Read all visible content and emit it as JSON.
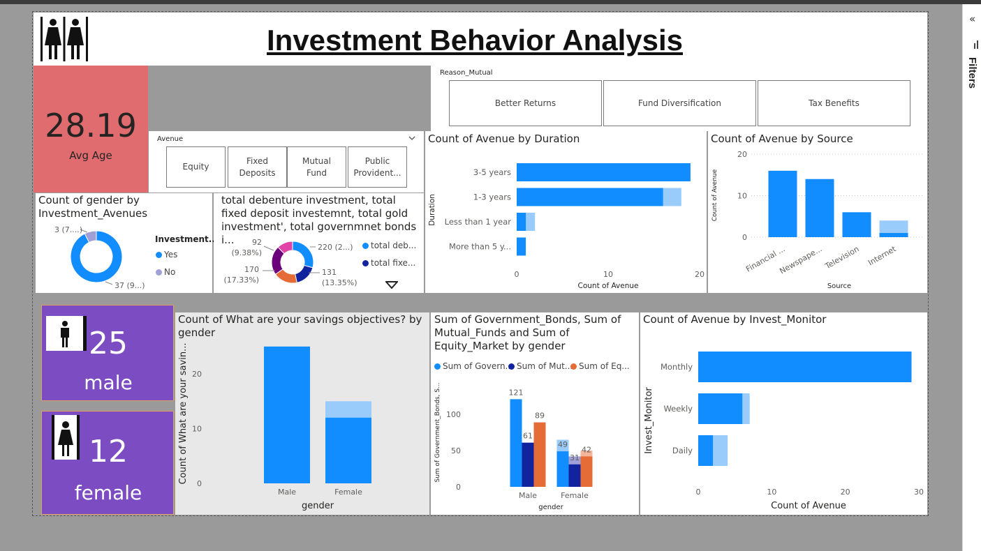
{
  "header": {
    "title": "Investment Behavior Analysis"
  },
  "side_panel": {
    "filters_label": "Filters",
    "collapse_glyph": "«"
  },
  "kpi_age": {
    "value": "28.19",
    "label": "Avg Age",
    "color": "#e06c70"
  },
  "reason_slicer": {
    "label": "Reason_Mutual",
    "options": [
      "Better Returns",
      "Fund Diversification",
      "Tax Benefits"
    ]
  },
  "avenue_slicer": {
    "label": "Avenue",
    "options": [
      "Equity",
      "Fixed\nDeposits",
      "Mutual\nFund",
      "Public\nProvident..."
    ]
  },
  "gender_cards": {
    "male": {
      "count": "25",
      "label": "male"
    },
    "female": {
      "count": "12",
      "label": "female"
    },
    "color": "#7b4cc2"
  },
  "colors": {
    "primary": "#118dff",
    "primary_light": "#99ccfb",
    "navy": "#12239e",
    "orange": "#e66c37",
    "purple_dark": "#6b007b",
    "magenta": "#e044a7",
    "lavender": "#a0a0d8"
  },
  "chart_data": [
    {
      "id": "gender_by_avenues",
      "type": "pie",
      "title": "Count of gender by Investment_Avenues",
      "legend_title": "Investment...",
      "slices": [
        {
          "name": "Yes",
          "value": 37,
          "label": "37 (9...)"
        },
        {
          "name": "No",
          "value": 3,
          "label": "3 (7....)"
        }
      ]
    },
    {
      "id": "investment_totals",
      "type": "pie",
      "title": "total debenture investment, total fixed deposit investemnt, total gold investment', total governmnet bonds i...",
      "legend": [
        "total deb...",
        "total fixe..."
      ],
      "slices": [
        {
          "name": "total deb...",
          "value": 220,
          "label": "220 (2...)"
        },
        {
          "name": "total fixe...",
          "value": 131,
          "label": "131\n(13.35%)"
        },
        {
          "name": "",
          "value": 170,
          "label": "170\n(17.33%)"
        },
        {
          "name": "",
          "value": 92,
          "label": "92\n(9.38%)"
        }
      ]
    },
    {
      "id": "avenue_by_duration",
      "type": "bar",
      "orientation": "horizontal",
      "title": "Count of Avenue by Duration",
      "xlabel": "Count of Avenue",
      "ylabel": "Duration",
      "categories": [
        "3-5 years",
        "1-3 years",
        "Less than 1 year",
        "More than 5 y..."
      ],
      "values": [
        19,
        16,
        1,
        1
      ],
      "highlight_totals": [
        19,
        18,
        2,
        1
      ],
      "x_ticks": [
        0,
        10,
        20
      ],
      "xlim": [
        0,
        20
      ]
    },
    {
      "id": "avenue_by_source",
      "type": "bar",
      "title": "Count of Avenue by Source",
      "xlabel": "Source",
      "ylabel": "Count of Avenue",
      "categories": [
        "Financial ...",
        "Newspape...",
        "Television",
        "Internet"
      ],
      "values": [
        16,
        14,
        6,
        1
      ],
      "highlight_totals": [
        16,
        14,
        6,
        4
      ],
      "y_ticks": [
        0,
        10,
        20
      ],
      "ylim": [
        0,
        20
      ]
    },
    {
      "id": "savings_by_gender",
      "type": "bar",
      "title": "Count of What are your savings objectives? by gender",
      "xlabel": "gender",
      "ylabel": "Count of What are your savin...",
      "categories": [
        "Male",
        "Female"
      ],
      "values": [
        25,
        12
      ],
      "highlight_totals": [
        25,
        15
      ],
      "y_ticks": [
        0,
        10,
        20
      ],
      "ylim": [
        0,
        26
      ]
    },
    {
      "id": "bonds_funds_equity_by_gender",
      "type": "bar",
      "title": "Sum of Government_Bonds, Sum of Mutual_Funds and Sum of Equity_Market by gender",
      "xlabel": "gender",
      "ylabel": "Sum of Government_Bonds, S...",
      "categories": [
        "Male",
        "Female"
      ],
      "series": [
        {
          "name": "Sum of Govern...",
          "values": [
            121,
            49
          ],
          "highlight_totals": [
            121,
            65
          ]
        },
        {
          "name": "Sum of Mut...",
          "values": [
            61,
            31
          ],
          "highlight_totals": [
            61,
            42
          ]
        },
        {
          "name": "Sum of Eq...",
          "values": [
            89,
            42
          ],
          "highlight_totals": [
            89,
            50
          ]
        }
      ],
      "data_labels": [
        "121",
        "61",
        "89",
        "49",
        "31",
        "42"
      ],
      "y_ticks": [
        0,
        50,
        100
      ],
      "ylim": [
        0,
        130
      ]
    },
    {
      "id": "avenue_by_invest_monitor",
      "type": "bar",
      "orientation": "horizontal",
      "title": "Count of Avenue by Invest_Monitor",
      "xlabel": "Count of Avenue",
      "ylabel": "Invest_Monitor",
      "categories": [
        "Monthly",
        "Weekly",
        "Daily"
      ],
      "values": [
        29,
        6,
        2
      ],
      "highlight_totals": [
        29,
        7,
        4
      ],
      "x_ticks": [
        0,
        10,
        20,
        30
      ],
      "xlim": [
        0,
        30
      ]
    }
  ]
}
